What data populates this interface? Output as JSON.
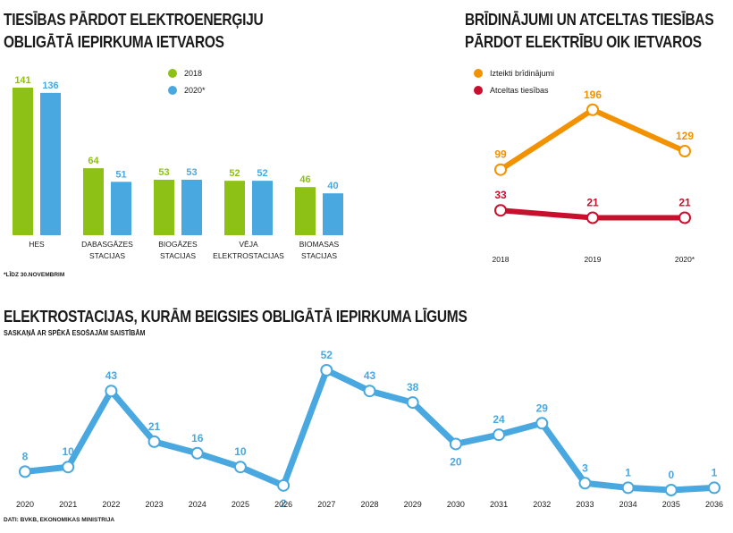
{
  "colors": {
    "green": "#8dc116",
    "blue": "#4aa8e0",
    "orange": "#f39200",
    "red": "#c8102e"
  },
  "chart_data": [
    {
      "type": "bar",
      "title": "TIESĪBAS PĀRDOT ELEKTROENERĢIJU OBLIGĀTĀ IEPIRKUMA IETVAROS",
      "title_lines": [
        "TIESĪBAS PĀRDOT ELEKTROENERĢIJU",
        "OBLIGĀTĀ IEPIRKUMA IETVAROS"
      ],
      "categories": [
        "HES",
        "DABASGĀZES STACIJAS",
        "BIOGĀZES STACIJAS",
        "VĒJA ELEKTROSTACIJAS",
        "BIOMASAS STACIJAS"
      ],
      "category_lines": [
        [
          "HES"
        ],
        [
          "DABASGĀZES",
          "STACIJAS"
        ],
        [
          "BIOGĀZES",
          "STACIJAS"
        ],
        [
          "VĒJA",
          "ELEKTROSTACIJAS"
        ],
        [
          "BIOMASAS",
          "STACIJAS"
        ]
      ],
      "series": [
        {
          "name": "2018",
          "values": [
            141,
            64,
            53,
            52,
            46
          ]
        },
        {
          "name": "2020*",
          "values": [
            136,
            51,
            53,
            52,
            40
          ]
        }
      ],
      "ylim": [
        0,
        141
      ],
      "legend": "top-right",
      "note": "*LĪDZ 30.NOVEMBRIM"
    },
    {
      "type": "line",
      "title": "BRĪDINĀJUMI UN ATCELTAS TIESĪBAS PĀRDOT ELEKTRĪBU OIK IETVAROS",
      "title_lines": [
        "BRĪDINĀJUMI UN ATCELTAS TIESĪBAS",
        "PĀRDOT ELEKTRĪBU OIK IETVAROS"
      ],
      "x": [
        "2018",
        "2019",
        "2020*"
      ],
      "series": [
        {
          "name": "Izteikti brīdinājumi",
          "values": [
            99,
            196,
            129
          ]
        },
        {
          "name": "Atceltas tiesības",
          "values": [
            33,
            21,
            21
          ]
        }
      ],
      "ylim": [
        0,
        200
      ],
      "legend": "top-left"
    },
    {
      "type": "line",
      "title": "ELEKTROSTACIJAS, KURĀM BEIGSIES OBLIGĀTĀ IEPIRKUMA LĪGUMS",
      "subtitle": "SASKAŅĀ AR SPĒKĀ ESOŠAJĀM SAISTĪBĀM",
      "x": [
        "2020",
        "2021",
        "2022",
        "2023",
        "2024",
        "2025",
        "2026",
        "2027",
        "2028",
        "2029",
        "2030",
        "2031",
        "2032",
        "2033",
        "2034",
        "2035",
        "2036"
      ],
      "values": [
        8,
        10,
        43,
        21,
        16,
        10,
        2,
        52,
        43,
        38,
        20,
        24,
        29,
        3,
        1,
        0,
        1
      ],
      "ylim": [
        0,
        52
      ],
      "source": "DATI: BVKB, EKONOMIKAS MINISTRIJA"
    }
  ]
}
